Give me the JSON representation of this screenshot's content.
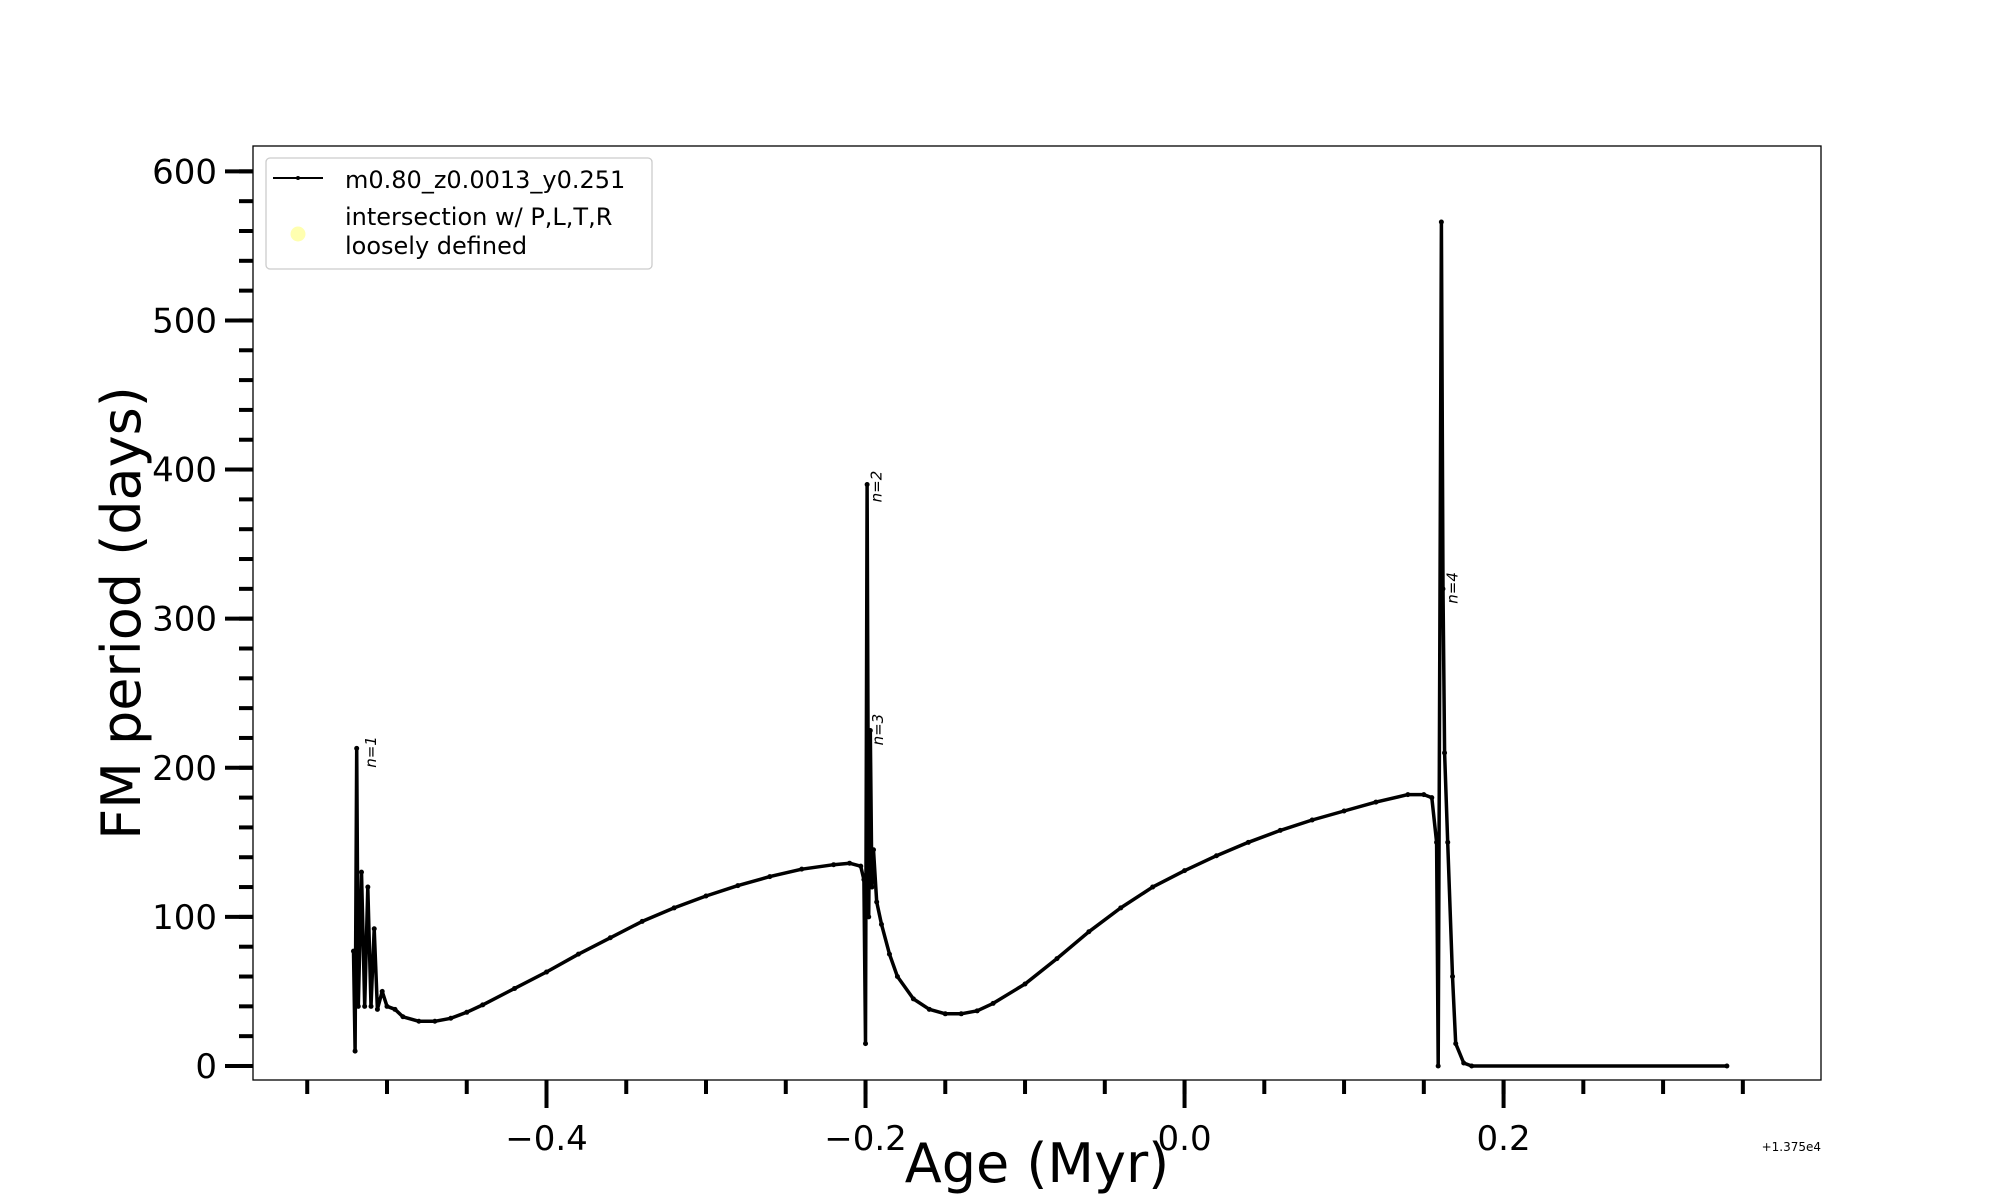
{
  "chart_data": {
    "type": "line",
    "title": "",
    "xlabel": "Age (Myr)",
    "ylabel": "FM period (days)",
    "x_offset_label": "+1.375e4",
    "xlim": [
      -0.584,
      0.399
    ],
    "ylim": [
      -9.4,
      617
    ],
    "xticks": [
      -0.4,
      -0.2,
      0.0,
      0.2
    ],
    "xtick_labels": [
      "−0.4",
      "−0.2",
      "0.0",
      "0.2"
    ],
    "x_minor_step": 0.05,
    "yticks": [
      0,
      100,
      200,
      300,
      400,
      500,
      600
    ],
    "ytick_labels": [
      "0",
      "100",
      "200",
      "300",
      "400",
      "500",
      "600"
    ],
    "y_minor_step": 20,
    "grid": false,
    "legend_position": "top-left",
    "legend": [
      {
        "label": "m0.80_z0.0013_y0.251",
        "marker": "line-dot",
        "color": "#000000"
      },
      {
        "label": "intersection w/ P,L,T,R\nloosely defined",
        "marker": "circle",
        "color": "#ffffb0"
      }
    ],
    "series": [
      {
        "name": "m0.80_z0.0013_y0.251",
        "color": "#000000",
        "x": [
          -0.521,
          -0.52,
          -0.519,
          -0.518,
          -0.516,
          -0.514,
          -0.512,
          -0.51,
          -0.508,
          -0.506,
          -0.503,
          -0.5,
          -0.495,
          -0.49,
          -0.48,
          -0.47,
          -0.46,
          -0.45,
          -0.44,
          -0.42,
          -0.4,
          -0.38,
          -0.36,
          -0.34,
          -0.32,
          -0.3,
          -0.28,
          -0.26,
          -0.24,
          -0.22,
          -0.21,
          -0.203,
          -0.201,
          -0.2,
          -0.199,
          -0.198,
          -0.197,
          -0.196,
          -0.195,
          -0.193,
          -0.19,
          -0.185,
          -0.18,
          -0.17,
          -0.16,
          -0.15,
          -0.14,
          -0.13,
          -0.12,
          -0.1,
          -0.08,
          -0.06,
          -0.04,
          -0.02,
          0.0,
          0.02,
          0.04,
          0.06,
          0.08,
          0.1,
          0.12,
          0.14,
          0.15,
          0.155,
          0.158,
          0.159,
          0.161,
          0.162,
          0.163,
          0.165,
          0.168,
          0.17,
          0.175,
          0.18,
          0.34
        ],
        "y": [
          77,
          10,
          213,
          40,
          130,
          40,
          120,
          40,
          92,
          38,
          50,
          40,
          38,
          33,
          30,
          30,
          32,
          36,
          41,
          52,
          63,
          75,
          86,
          97,
          106,
          114,
          121,
          127,
          132,
          135,
          136,
          134,
          125,
          15,
          390,
          100,
          225,
          120,
          145,
          110,
          95,
          75,
          60,
          45,
          38,
          35,
          35,
          37,
          42,
          55,
          72,
          90,
          106,
          120,
          131,
          141,
          150,
          158,
          165,
          171,
          177,
          182,
          182,
          180,
          150,
          0,
          566,
          320,
          210,
          150,
          60,
          15,
          2,
          0,
          0
        ]
      }
    ],
    "annotations": [
      {
        "text": "n=1",
        "x": -0.512,
        "y": 200
      },
      {
        "text": "n=2",
        "x": -0.195,
        "y": 378
      },
      {
        "text": "n=3",
        "x": -0.194,
        "y": 215
      },
      {
        "text": "n=4",
        "x": 0.166,
        "y": 310
      }
    ]
  }
}
